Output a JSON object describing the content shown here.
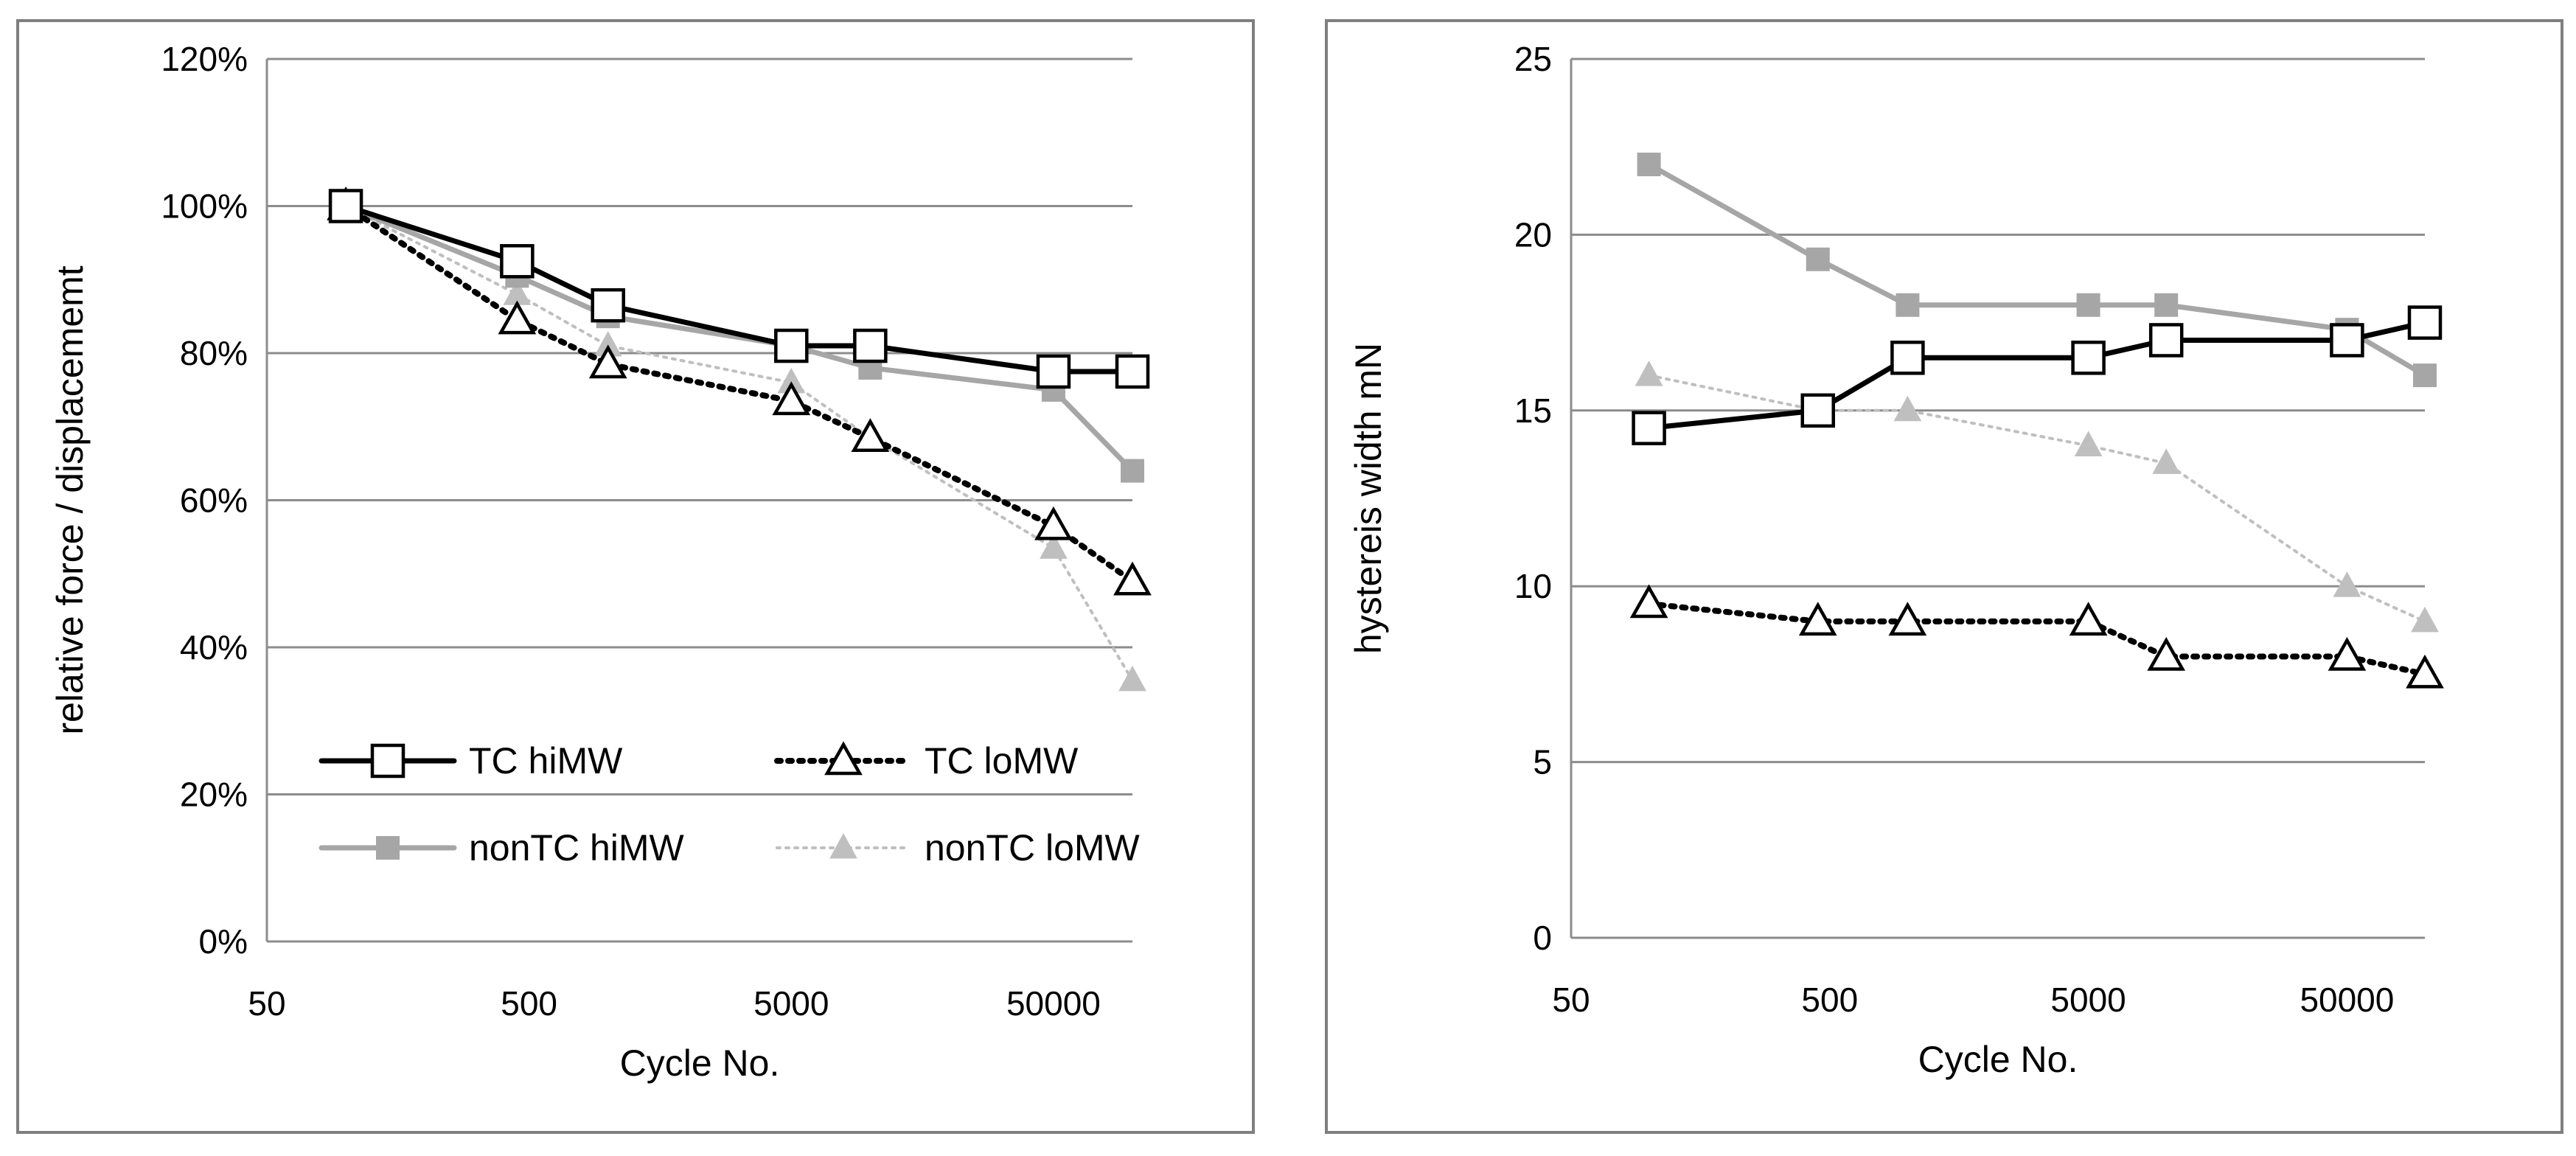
{
  "chart_data": [
    {
      "type": "line",
      "xscale": "log",
      "xlim": [
        50,
        100000
      ],
      "xticks": [
        "50",
        "500",
        "5000",
        "50000"
      ],
      "xlabel": "Cycle No.",
      "ylabel": "relative force / displacememt",
      "ylim": [
        0,
        1.2
      ],
      "yticks": [
        "0%",
        "20%",
        "40%",
        "60%",
        "80%",
        "100%",
        "120%"
      ],
      "grid": "horizontal",
      "legend": "bottom-left, two columns",
      "series": [
        {
          "name": "TC hiMW",
          "marker": "open-square",
          "color": "#000000",
          "dash": "solid",
          "x": [
            100,
            450,
            1000,
            5000,
            10000,
            50000,
            100000
          ],
          "y": [
            1.0,
            0.925,
            0.865,
            0.81,
            0.81,
            0.775,
            0.775
          ]
        },
        {
          "name": "TC loMW",
          "marker": "open-triangle",
          "color": "#000000",
          "dash": "dotted",
          "x": [
            100,
            450,
            1000,
            5000,
            10000,
            50000,
            100000
          ],
          "y": [
            1.0,
            0.845,
            0.785,
            0.735,
            0.685,
            0.565,
            0.49
          ]
        },
        {
          "name": "nonTC hiMW",
          "marker": "filled-square",
          "color": "#a6a6a6",
          "dash": "solid",
          "x": [
            100,
            450,
            1000,
            5000,
            10000,
            50000,
            100000
          ],
          "y": [
            1.0,
            0.905,
            0.85,
            0.81,
            0.78,
            0.75,
            0.64
          ]
        },
        {
          "name": "nonTC loMW",
          "marker": "filled-triangle",
          "color": "#bfbfbf",
          "dash": "dotted-thin",
          "x": [
            100,
            450,
            1000,
            5000,
            10000,
            50000,
            100000
          ],
          "y": [
            1.0,
            0.88,
            0.81,
            0.76,
            0.685,
            0.535,
            0.355
          ]
        }
      ]
    },
    {
      "type": "line",
      "xscale": "log",
      "xlim": [
        50,
        100000
      ],
      "xticks": [
        "50",
        "500",
        "5000",
        "50000"
      ],
      "xlabel": "Cycle No.",
      "ylabel": "hystereis width  mN",
      "ylim": [
        0,
        25
      ],
      "yticks": [
        "0",
        "5",
        "10",
        "15",
        "20",
        "25"
      ],
      "grid": "horizontal",
      "series": [
        {
          "name": "TC hiMW",
          "marker": "open-square",
          "color": "#000000",
          "dash": "solid",
          "x": [
            100,
            450,
            1000,
            5000,
            10000,
            50000,
            100000
          ],
          "y": [
            14.5,
            15.0,
            16.5,
            16.5,
            17.0,
            17.0,
            17.5
          ]
        },
        {
          "name": "TC loMW",
          "marker": "open-triangle",
          "color": "#000000",
          "dash": "dotted",
          "x": [
            100,
            450,
            1000,
            5000,
            10000,
            50000,
            100000
          ],
          "y": [
            9.5,
            9.0,
            9.0,
            9.0,
            8.0,
            8.0,
            7.5
          ]
        },
        {
          "name": "nonTC hiMW",
          "marker": "filled-square",
          "color": "#a6a6a6",
          "dash": "solid",
          "x": [
            100,
            450,
            1000,
            5000,
            10000,
            50000,
            100000
          ],
          "y": [
            22.0,
            19.3,
            18.0,
            18.0,
            18.0,
            17.3,
            16.0
          ]
        },
        {
          "name": "nonTC loMW",
          "marker": "filled-triangle",
          "color": "#bfbfbf",
          "dash": "dotted-thin",
          "x": [
            100,
            450,
            1000,
            5000,
            10000,
            50000,
            100000
          ],
          "y": [
            16.0,
            15.0,
            15.0,
            14.0,
            13.5,
            10.0,
            9.0
          ]
        }
      ]
    }
  ]
}
